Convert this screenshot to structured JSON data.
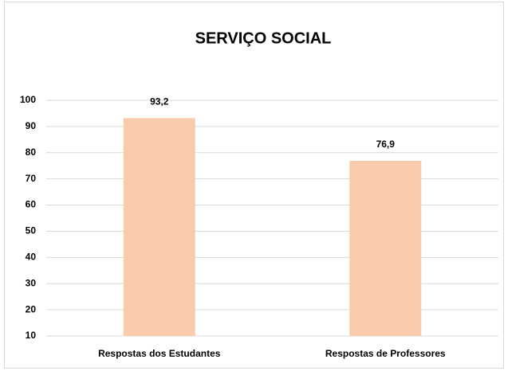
{
  "chart_data": {
    "type": "bar",
    "title": "SERVIÇO SOCIAL",
    "categories": [
      "Respostas dos Estudantes",
      "Respostas de Professores"
    ],
    "values": [
      93.2,
      76.9
    ],
    "value_labels": [
      "93,2",
      "76,9"
    ],
    "color": "#f8cbad",
    "ylim": [
      10,
      100
    ],
    "yticks": [
      10,
      20,
      30,
      40,
      50,
      60,
      70,
      80,
      90,
      100
    ],
    "grid": true
  }
}
